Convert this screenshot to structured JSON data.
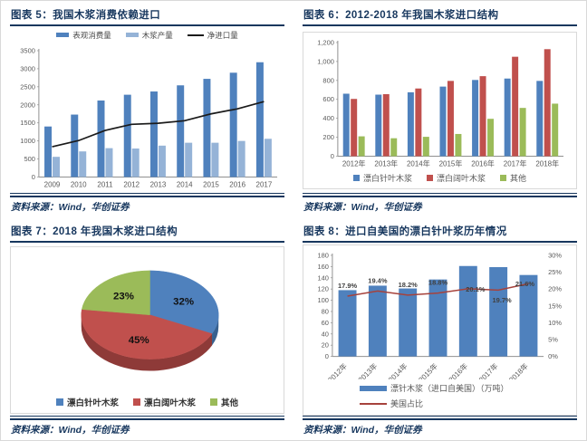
{
  "accent_colors": {
    "title_navy": "#17375E",
    "bar_blue": "#4F81BD",
    "bar_light_blue": "#95B3D7",
    "bar_red": "#C0504D",
    "bar_green": "#9BBB59",
    "line_black": "#1a1a1a",
    "line_dark_red": "#A6423C"
  },
  "chart_data": [
    {
      "id": "fig5",
      "type": "bar",
      "title": "图表 5：我国木浆消费依赖进口",
      "source": "资料来源：Wind，华创证券",
      "categories": [
        "2009",
        "2010",
        "2011",
        "2012",
        "2013",
        "2014",
        "2015",
        "2016",
        "2017"
      ],
      "series": [
        {
          "name": "表观消费量",
          "type": "bar",
          "color": "#4F81BD",
          "values": [
            1400,
            1730,
            2120,
            2280,
            2370,
            2540,
            2720,
            2890,
            3180
          ]
        },
        {
          "name": "木浆产量",
          "type": "bar",
          "color": "#95B3D7",
          "values": [
            560,
            710,
            800,
            790,
            870,
            950,
            950,
            1000,
            1060
          ]
        },
        {
          "name": "净进口量",
          "type": "line",
          "color": "#1a1a1a",
          "values": [
            840,
            1010,
            1290,
            1460,
            1490,
            1560,
            1750,
            1890,
            2090
          ]
        }
      ],
      "ylim": [
        0,
        3500
      ],
      "ytick_step": 500,
      "grid": false,
      "legend_position": "top"
    },
    {
      "id": "fig6",
      "type": "bar",
      "title": "图表 6：2012-2018 年我国木浆进口结构",
      "source": "资料来源：Wind，华创证券",
      "categories": [
        "2012年",
        "2013年",
        "2014年",
        "2015年",
        "2016年",
        "2017年",
        "2018年"
      ],
      "series": [
        {
          "name": "漂白针叶木浆",
          "type": "bar",
          "color": "#4F81BD",
          "values": [
            660,
            650,
            675,
            735,
            805,
            820,
            795
          ]
        },
        {
          "name": "漂白阔叶木浆",
          "type": "bar",
          "color": "#C0504D",
          "values": [
            605,
            655,
            715,
            795,
            845,
            1050,
            1130
          ]
        },
        {
          "name": "其他",
          "type": "bar",
          "color": "#9BBB59",
          "values": [
            210,
            190,
            205,
            235,
            395,
            510,
            555
          ]
        }
      ],
      "ylim": [
        0,
        1200
      ],
      "ytick_step": 200,
      "ytick_format": "comma",
      "grid": false,
      "legend_position": "bottom"
    },
    {
      "id": "fig7",
      "type": "pie",
      "title": "图表 7：2018 年我国木浆进口结构",
      "source": "资料来源：Wind，华创证券",
      "slices": [
        {
          "label": "漂白针叶木浆",
          "value": 32,
          "display": "32%",
          "color": "#4F81BD",
          "side_color": "#38618F"
        },
        {
          "label": "漂白阔叶木浆",
          "value": 45,
          "display": "45%",
          "color": "#C0504D",
          "side_color": "#8E3A38"
        },
        {
          "label": "其他",
          "value": 23,
          "display": "23%",
          "color": "#9BBB59",
          "side_color": "#71883F"
        }
      ],
      "legend_position": "bottom"
    },
    {
      "id": "fig8",
      "type": "bar",
      "title": "图表 8：进口自美国的漂白针叶浆历年情况",
      "source": "资料来源：Wind，华创证券",
      "categories": [
        "2012年",
        "2013年",
        "2014年",
        "2015年",
        "2016年",
        "2017年",
        "2018年"
      ],
      "series": [
        {
          "name": "漂针木浆（进口自美国）（万吨）",
          "type": "bar",
          "color": "#4F81BD",
          "values": [
            118,
            126,
            121,
            137,
            161,
            159,
            145
          ]
        },
        {
          "name": "美国占比",
          "type": "line",
          "axis": "right",
          "color": "#A6423C",
          "values": [
            17.9,
            19.4,
            18.2,
            18.8,
            20.1,
            19.7,
            21.6
          ],
          "labels": [
            "17.9%",
            "19.4%",
            "18.2%",
            "18.8%",
            "20.1%",
            "19.7%",
            "21.6%"
          ]
        }
      ],
      "ylim": [
        0,
        180
      ],
      "ytick_step": 20,
      "y2lim": [
        0,
        30
      ],
      "y2tick_step": 5,
      "y2tick_suffix": "%",
      "grid": false,
      "legend_position": "bottom-stacked",
      "x_label_rotate": -45
    }
  ]
}
